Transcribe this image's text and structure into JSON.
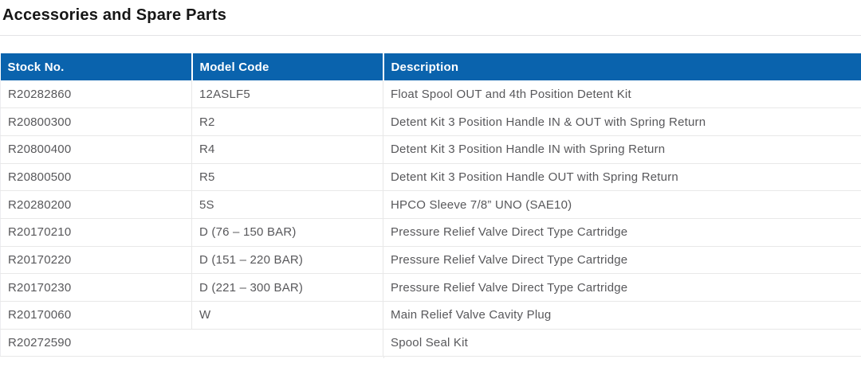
{
  "page": {
    "title": "Accessories and Spare Parts"
  },
  "theme": {
    "header_bg": "#0a63ad",
    "header_text": "#ffffff",
    "title_color": "#161616",
    "row_text": "#58585b",
    "grid_color": "#e8e8e8",
    "grid_edge": "#ededf0",
    "rule_color": "#e3e3e6"
  },
  "table": {
    "columns": [
      "Stock No.",
      "Model Code",
      "Description"
    ],
    "rows": [
      {
        "stock": "R20282860",
        "model": "12ASLF5",
        "description": "Float Spool OUT and 4th Position Detent Kit"
      },
      {
        "stock": "R20800300",
        "model": "R2",
        "description": "Detent Kit 3 Position Handle IN & OUT with Spring Return"
      },
      {
        "stock": "R20800400",
        "model": "R4",
        "description": "Detent Kit 3 Position Handle IN with Spring Return"
      },
      {
        "stock": "R20800500",
        "model": "R5",
        "description": "Detent Kit 3 Position Handle OUT with Spring Return"
      },
      {
        "stock": "R20280200",
        "model": "5S",
        "description": "HPCO Sleeve 7/8” UNO (SAE10)"
      },
      {
        "stock": "R20170210",
        "model": "D (76 – 150 BAR)",
        "description": "Pressure Relief Valve Direct Type Cartridge"
      },
      {
        "stock": "R20170220",
        "model": "D (151 – 220 BAR)",
        "description": "Pressure Relief Valve Direct Type Cartridge"
      },
      {
        "stock": "R20170230",
        "model": "D (221 – 300 BAR)",
        "description": "Pressure Relief Valve Direct Type Cartridge"
      },
      {
        "stock": "R20170060",
        "model": "W",
        "description": "Main Relief Valve Cavity Plug"
      },
      {
        "stock": "R20272590",
        "model": null,
        "description": "Spool Seal Kit"
      }
    ]
  }
}
